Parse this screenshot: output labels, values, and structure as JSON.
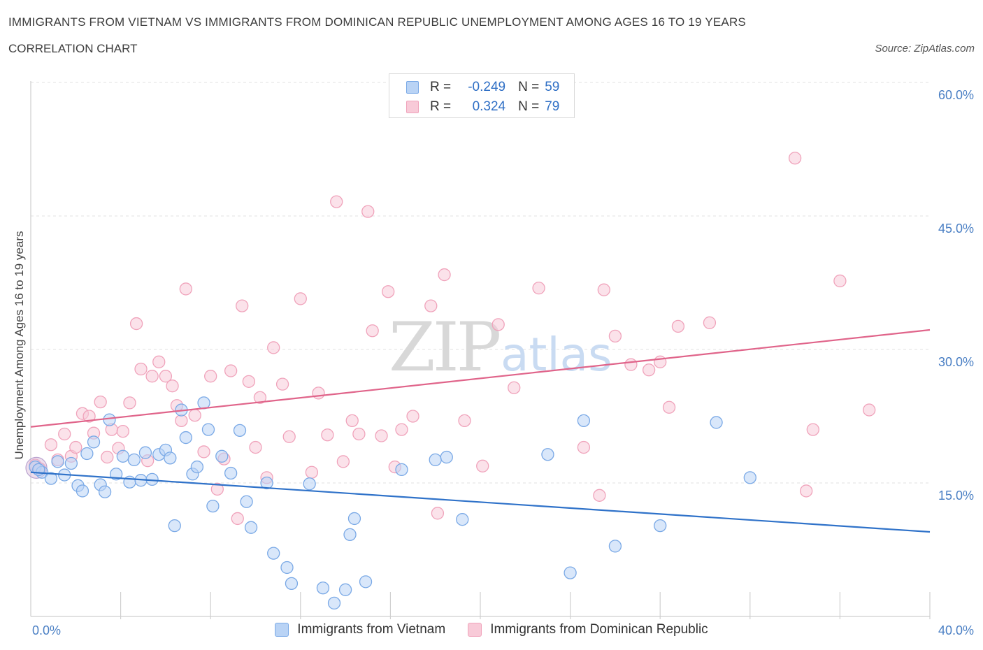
{
  "title": "IMMIGRANTS FROM VIETNAM VS IMMIGRANTS FROM DOMINICAN REPUBLIC UNEMPLOYMENT AMONG AGES 16 TO 19 YEARS",
  "subtitle": "CORRELATION CHART",
  "source": "Source: ZipAtlas.com",
  "watermark": {
    "zip": "ZIP",
    "atlas": "atlas"
  },
  "legend": {
    "rows": [
      {
        "r_label": "R =",
        "r_value": "-0.249",
        "n_label": "N =",
        "n_value": "59"
      },
      {
        "r_label": "R =",
        "r_value": "0.324",
        "n_label": "N =",
        "n_value": "79"
      }
    ]
  },
  "chart_data": {
    "type": "scatter",
    "xlabel": "",
    "ylabel": "Unemployment Among Ages 16 to 19 years",
    "xlim": [
      0,
      40
    ],
    "ylim": [
      0,
      60
    ],
    "x_tick_labels": [
      "0.0%",
      "40.0%"
    ],
    "y_tick_labels": [
      "15.0%",
      "30.0%",
      "45.0%",
      "60.0%"
    ],
    "y_ticks": [
      15,
      30,
      45,
      60
    ],
    "grid": true,
    "legend_position": "top-center",
    "series": [
      {
        "name": "Immigrants from Vietnam",
        "color": "#7aa9e6",
        "fill": "#b9d3f5",
        "line_color": "#2f72c9",
        "trend": [
          [
            0,
            16.2
          ],
          [
            40,
            9.5
          ]
        ],
        "points": [
          [
            0.2,
            16.8
          ],
          [
            0.5,
            16.2
          ],
          [
            0.9,
            15.5
          ],
          [
            1.2,
            17.4
          ],
          [
            1.5,
            15.9
          ],
          [
            1.8,
            17.2
          ],
          [
            2.1,
            14.7
          ],
          [
            2.3,
            14.1
          ],
          [
            2.5,
            18.3
          ],
          [
            2.8,
            19.6
          ],
          [
            3.1,
            14.8
          ],
          [
            3.3,
            14.0
          ],
          [
            3.5,
            22.1
          ],
          [
            3.8,
            16.0
          ],
          [
            4.1,
            18.0
          ],
          [
            4.4,
            15.1
          ],
          [
            4.6,
            17.6
          ],
          [
            4.9,
            15.3
          ],
          [
            5.1,
            18.4
          ],
          [
            5.4,
            15.4
          ],
          [
            5.7,
            18.2
          ],
          [
            6.0,
            18.7
          ],
          [
            6.2,
            17.8
          ],
          [
            6.4,
            10.2
          ],
          [
            6.7,
            23.2
          ],
          [
            6.9,
            20.1
          ],
          [
            7.2,
            16.0
          ],
          [
            7.4,
            16.8
          ],
          [
            7.7,
            24.0
          ],
          [
            7.9,
            21.0
          ],
          [
            8.1,
            12.4
          ],
          [
            8.5,
            18.0
          ],
          [
            8.9,
            16.1
          ],
          [
            9.3,
            20.9
          ],
          [
            9.6,
            12.9
          ],
          [
            9.8,
            10.0
          ],
          [
            10.5,
            15.0
          ],
          [
            10.8,
            7.1
          ],
          [
            11.4,
            5.5
          ],
          [
            11.6,
            3.7
          ],
          [
            12.4,
            14.9
          ],
          [
            13.0,
            3.2
          ],
          [
            13.5,
            1.5
          ],
          [
            14.0,
            3.0
          ],
          [
            14.2,
            9.2
          ],
          [
            14.4,
            11.0
          ],
          [
            14.9,
            3.9
          ],
          [
            16.5,
            16.5
          ],
          [
            18.0,
            17.6
          ],
          [
            18.5,
            17.9
          ],
          [
            19.2,
            10.9
          ],
          [
            23.0,
            18.2
          ],
          [
            24.0,
            4.9
          ],
          [
            24.6,
            22.0
          ],
          [
            26.0,
            7.9
          ],
          [
            28.0,
            10.2
          ],
          [
            30.5,
            21.8
          ],
          [
            32.0,
            15.6
          ],
          [
            0.35,
            16.5
          ]
        ]
      },
      {
        "name": "Immigrants from Dominican Republic",
        "color": "#f0a3bb",
        "fill": "#f8cad8",
        "line_color": "#e0648a",
        "trend": [
          [
            0,
            21.3
          ],
          [
            40,
            32.2
          ]
        ],
        "points": [
          [
            0.2,
            17.0
          ],
          [
            0.4,
            16.6
          ],
          [
            0.9,
            19.3
          ],
          [
            1.2,
            17.6
          ],
          [
            1.5,
            20.5
          ],
          [
            1.8,
            18.0
          ],
          [
            2.0,
            19.0
          ],
          [
            2.3,
            22.8
          ],
          [
            2.6,
            22.5
          ],
          [
            2.8,
            20.6
          ],
          [
            3.1,
            24.1
          ],
          [
            3.4,
            17.9
          ],
          [
            3.6,
            21.0
          ],
          [
            3.9,
            18.9
          ],
          [
            4.1,
            20.8
          ],
          [
            4.4,
            24.0
          ],
          [
            4.7,
            32.9
          ],
          [
            4.9,
            27.8
          ],
          [
            5.2,
            17.5
          ],
          [
            5.4,
            27.0
          ],
          [
            5.7,
            28.6
          ],
          [
            6.0,
            27.0
          ],
          [
            6.3,
            25.9
          ],
          [
            6.5,
            23.7
          ],
          [
            6.7,
            22.0
          ],
          [
            6.9,
            36.8
          ],
          [
            7.3,
            22.6
          ],
          [
            7.7,
            18.5
          ],
          [
            8.0,
            27.0
          ],
          [
            8.3,
            14.3
          ],
          [
            8.6,
            17.7
          ],
          [
            8.9,
            27.6
          ],
          [
            9.2,
            11.0
          ],
          [
            9.4,
            34.9
          ],
          [
            9.7,
            26.4
          ],
          [
            10.0,
            19.0
          ],
          [
            10.2,
            24.6
          ],
          [
            10.5,
            15.6
          ],
          [
            10.8,
            30.2
          ],
          [
            11.2,
            26.1
          ],
          [
            11.5,
            20.2
          ],
          [
            12.0,
            35.7
          ],
          [
            12.5,
            16.2
          ],
          [
            12.8,
            25.1
          ],
          [
            13.2,
            20.4
          ],
          [
            13.6,
            46.6
          ],
          [
            13.9,
            17.4
          ],
          [
            14.3,
            22.0
          ],
          [
            14.6,
            20.5
          ],
          [
            15.0,
            45.5
          ],
          [
            15.2,
            32.1
          ],
          [
            15.6,
            20.3
          ],
          [
            15.9,
            36.5
          ],
          [
            16.2,
            16.8
          ],
          [
            16.5,
            21.0
          ],
          [
            17.0,
            22.5
          ],
          [
            17.8,
            34.9
          ],
          [
            18.1,
            11.6
          ],
          [
            18.4,
            38.4
          ],
          [
            19.3,
            22.0
          ],
          [
            20.1,
            16.9
          ],
          [
            20.8,
            32.8
          ],
          [
            21.5,
            25.7
          ],
          [
            22.6,
            36.9
          ],
          [
            24.6,
            19.0
          ],
          [
            25.3,
            13.6
          ],
          [
            25.5,
            36.7
          ],
          [
            26.0,
            31.5
          ],
          [
            26.7,
            28.3
          ],
          [
            27.5,
            27.7
          ],
          [
            28.0,
            28.6
          ],
          [
            28.4,
            23.5
          ],
          [
            28.8,
            32.6
          ],
          [
            30.2,
            33.0
          ],
          [
            34.0,
            51.5
          ],
          [
            34.5,
            14.1
          ],
          [
            34.8,
            21.0
          ],
          [
            36.0,
            37.7
          ],
          [
            37.3,
            23.2
          ]
        ]
      }
    ]
  }
}
